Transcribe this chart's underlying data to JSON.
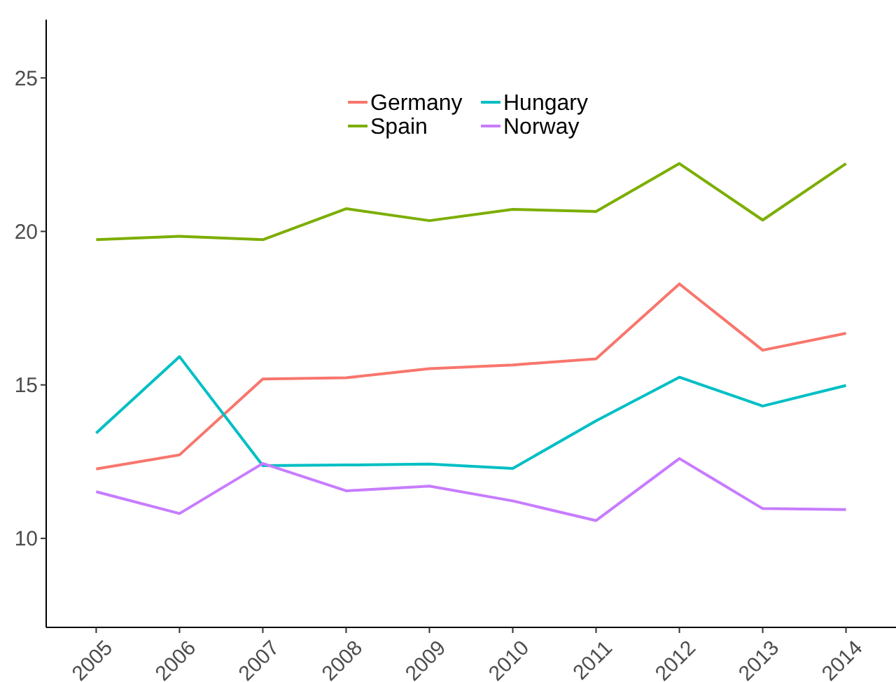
{
  "chart_data": {
    "type": "line",
    "categories": [
      "2005",
      "2006",
      "2007",
      "2008",
      "2009",
      "2010",
      "2011",
      "2012",
      "2013",
      "2014"
    ],
    "series": [
      {
        "name": "Germany",
        "color": "#f8766d",
        "values": [
          12.26,
          12.72,
          15.19,
          15.23,
          15.53,
          15.65,
          15.85,
          18.29,
          16.13,
          16.68
        ]
      },
      {
        "name": "Spain",
        "color": "#7cae00",
        "values": [
          19.73,
          19.84,
          19.73,
          20.74,
          20.35,
          20.72,
          20.65,
          22.21,
          20.37,
          22.21
        ]
      },
      {
        "name": "Hungary",
        "color": "#00bfc4",
        "values": [
          13.43,
          15.92,
          12.37,
          12.39,
          12.42,
          12.28,
          13.83,
          15.25,
          14.31,
          14.98
        ]
      },
      {
        "name": "Norway",
        "color": "#c77cff",
        "values": [
          11.52,
          10.81,
          12.44,
          11.55,
          11.7,
          11.22,
          10.58,
          12.6,
          10.97,
          10.94
        ]
      }
    ],
    "ylim": [
      7.1,
      26.9
    ],
    "yticks": [
      10,
      15,
      20,
      25
    ],
    "grid": false,
    "legend": "top",
    "marker": "none",
    "line_style": "solid"
  }
}
